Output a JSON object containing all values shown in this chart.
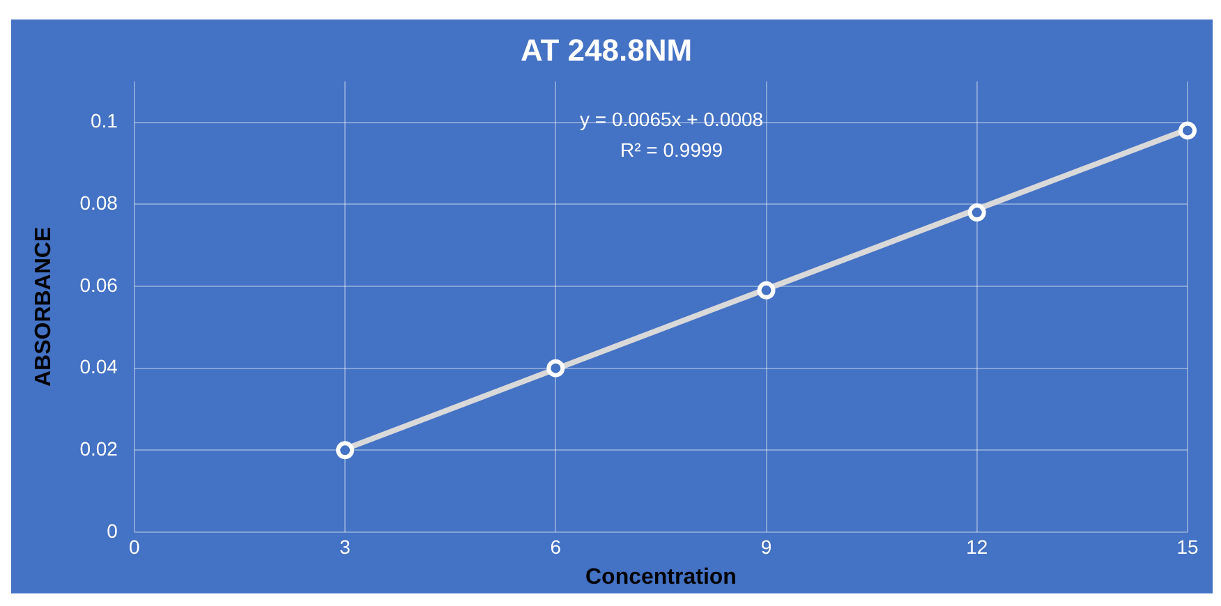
{
  "chart_data": {
    "type": "scatter",
    "title": "AT 248.8NM",
    "xlabel": "Concentration",
    "ylabel": "ABSORBANCE",
    "annotations": [
      "y = 0.0065x + 0.0008",
      "R² = 0.9999"
    ],
    "series": [
      {
        "type": "scatter",
        "color": "#ffffff",
        "marker": "circle",
        "x": [
          3,
          6,
          9,
          12,
          15
        ],
        "values": [
          0.02,
          0.04,
          0.059,
          0.078,
          0.098
        ]
      },
      {
        "type": "line",
        "color": "#d9d9d9",
        "marker": "none",
        "x": [
          3,
          15
        ],
        "values": [
          0.0203,
          0.0983
        ]
      }
    ],
    "xlim": [
      0,
      15
    ],
    "xticks": [
      0,
      3,
      6,
      9,
      12,
      15
    ],
    "ylim": [
      0,
      0.11
    ],
    "yticks": [
      0,
      0.02,
      0.04,
      0.06,
      0.08,
      0.1
    ],
    "grid": true,
    "legend": false
  }
}
